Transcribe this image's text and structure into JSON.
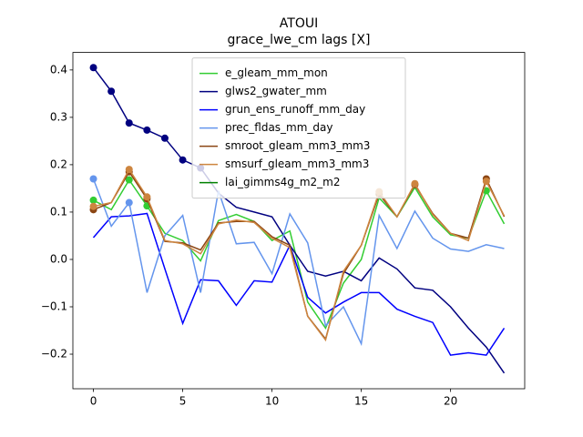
{
  "chart_data": {
    "type": "line",
    "title": "ATOUI",
    "subtitle": "grace_lwe_cm lags [X]",
    "x": [
      0,
      1,
      2,
      3,
      4,
      5,
      6,
      7,
      8,
      9,
      10,
      11,
      12,
      13,
      14,
      15,
      16,
      17,
      18,
      19,
      20,
      21,
      22,
      23
    ],
    "xlim": [
      -1.15,
      24.15
    ],
    "xticks": [
      0,
      5,
      10,
      15,
      20
    ],
    "ylim": [
      -0.273,
      0.437
    ],
    "yticks": [
      {
        "value": -0.2,
        "label": "−0.2"
      },
      {
        "value": -0.1,
        "label": "−0.1"
      },
      {
        "value": 0,
        "label": "0.0"
      },
      0.1,
      0.2,
      0.3,
      0.4
    ],
    "legend": "upper center",
    "series": [
      {
        "name": "e_gleam_mm_mon",
        "color": "#32cd32",
        "markers": [
          0,
          2,
          3,
          22
        ],
        "values": [
          0.125,
          0.105,
          0.168,
          0.113,
          0.055,
          0.04,
          -0.003,
          0.082,
          0.095,
          0.08,
          0.04,
          0.06,
          -0.09,
          -0.145,
          -0.05,
          0.0,
          0.13,
          0.09,
          0.152,
          0.09,
          0.052,
          0.045,
          0.145,
          0.075
        ]
      },
      {
        "name": "glws2_gwater_mm",
        "color": "#000080",
        "markers": [
          0,
          1,
          2,
          3,
          4,
          5,
          6
        ],
        "values": [
          0.405,
          0.355,
          0.288,
          0.273,
          0.256,
          0.21,
          0.193,
          0.14,
          0.11,
          0.1,
          0.09,
          0.03,
          -0.025,
          -0.035,
          -0.025,
          -0.045,
          0.003,
          -0.02,
          -0.06,
          -0.065,
          -0.1,
          -0.145,
          -0.185,
          -0.24
        ]
      },
      {
        "name": "grun_ens_runoff_mm_day",
        "color": "#0000ff",
        "markers": [],
        "values": [
          0.046,
          0.09,
          0.092,
          0.097,
          -0.02,
          -0.135,
          -0.043,
          -0.045,
          -0.097,
          -0.045,
          -0.048,
          0.03,
          -0.08,
          -0.113,
          -0.09,
          -0.07,
          -0.07,
          -0.105,
          -0.12,
          -0.133,
          -0.202,
          -0.197,
          -0.202,
          -0.145
        ]
      },
      {
        "name": "prec_fldas_mm_day",
        "color": "#6495ed",
        "markers": [
          0,
          2
        ],
        "values": [
          0.17,
          0.07,
          0.12,
          -0.07,
          0.05,
          0.093,
          -0.07,
          0.145,
          0.033,
          0.036,
          -0.03,
          0.096,
          0.035,
          -0.14,
          -0.1,
          -0.178,
          0.093,
          0.023,
          0.102,
          0.045,
          0.022,
          0.017,
          0.031,
          0.023
        ]
      },
      {
        "name": "smroot_gleam_mm3_mm3",
        "color": "#8b4513",
        "markers": [
          0,
          2,
          3,
          16,
          18,
          22
        ],
        "values": [
          0.105,
          0.12,
          0.185,
          0.128,
          0.038,
          0.035,
          0.02,
          0.077,
          0.08,
          0.08,
          0.048,
          0.03,
          -0.12,
          -0.168,
          -0.03,
          0.03,
          0.138,
          0.09,
          0.158,
          0.097,
          0.055,
          0.045,
          0.17,
          0.09
        ]
      },
      {
        "name": "smsurf_gleam_mm3_mm3",
        "color": "#cd853f",
        "markers": [
          0,
          2,
          3,
          16,
          18,
          22
        ],
        "values": [
          0.112,
          0.12,
          0.19,
          0.132,
          0.04,
          0.033,
          0.012,
          0.075,
          0.083,
          0.078,
          0.045,
          0.025,
          -0.12,
          -0.17,
          -0.025,
          0.03,
          0.143,
          0.09,
          0.16,
          0.095,
          0.055,
          0.04,
          0.165,
          0.092
        ]
      },
      {
        "name": "lai_gimms4g_m2_m2",
        "color": "#008000",
        "markers": [],
        "values": [
          null,
          null,
          null,
          null,
          null,
          null,
          null,
          null,
          null,
          null,
          null,
          null,
          null,
          null,
          null,
          null,
          null,
          null,
          null,
          null,
          null,
          null,
          null,
          null
        ]
      }
    ]
  }
}
